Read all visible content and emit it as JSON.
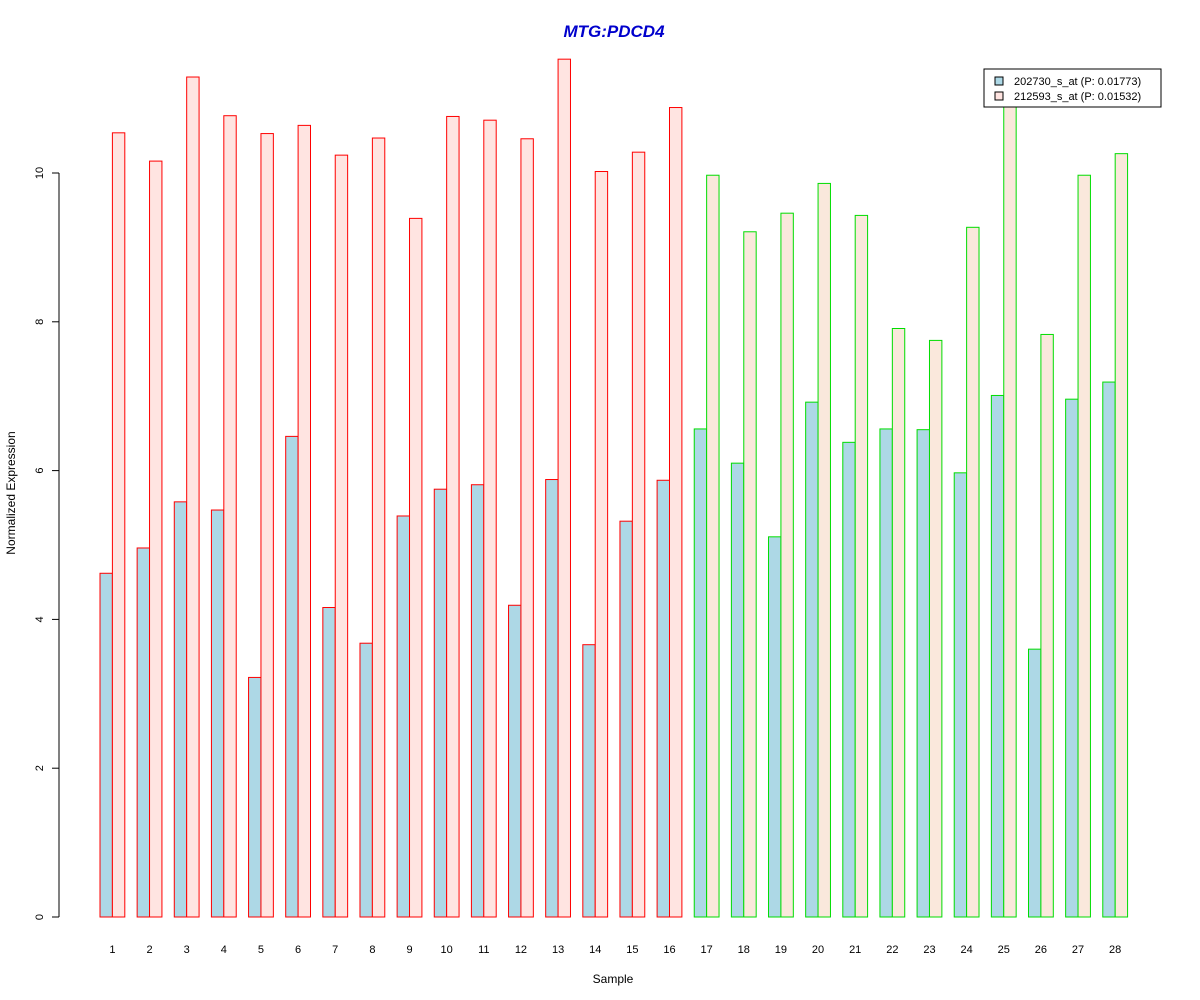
{
  "colors": {
    "title": "#0000cc",
    "series1_fill": "#add8e6",
    "series2_fill_group1": "#ffe4e1",
    "series2_fill_group2": "#fae8dc",
    "group1_stroke": "#ff0000",
    "group2_stroke": "#00dd00"
  },
  "chart_data": {
    "type": "bar",
    "title": "MTG:PDCD4",
    "xlabel": "Sample",
    "ylabel": "Normalized Expression",
    "ylim": [
      0,
      11.6
    ],
    "yticks": [
      0,
      2,
      4,
      6,
      8,
      10
    ],
    "grid": false,
    "legend_position": "top-right",
    "categories": [
      "1",
      "2",
      "3",
      "4",
      "5",
      "6",
      "7",
      "8",
      "9",
      "10",
      "11",
      "12",
      "13",
      "14",
      "15",
      "16",
      "17",
      "18",
      "19",
      "20",
      "21",
      "22",
      "23",
      "24",
      "25",
      "26",
      "27",
      "28"
    ],
    "group_sizes": [
      16,
      12
    ],
    "series": [
      {
        "name": "202730_s_at (P: 0.01773)",
        "values": [
          4.62,
          4.96,
          5.58,
          5.47,
          3.22,
          6.46,
          4.16,
          3.68,
          5.39,
          5.75,
          5.81,
          4.19,
          5.88,
          3.66,
          5.32,
          5.87,
          6.56,
          6.1,
          5.11,
          6.92,
          6.38,
          6.56,
          6.55,
          5.97,
          7.01,
          3.6,
          6.96,
          7.19
        ]
      },
      {
        "name": "212593_s_at (P: 0.01532)",
        "values": [
          10.54,
          10.16,
          11.29,
          10.77,
          10.53,
          10.64,
          10.24,
          10.47,
          9.39,
          10.76,
          10.71,
          10.46,
          11.53,
          10.02,
          10.28,
          10.88,
          9.97,
          9.21,
          9.46,
          9.86,
          9.43,
          7.91,
          7.75,
          9.27,
          10.96,
          7.83,
          9.97,
          10.26
        ]
      }
    ]
  }
}
